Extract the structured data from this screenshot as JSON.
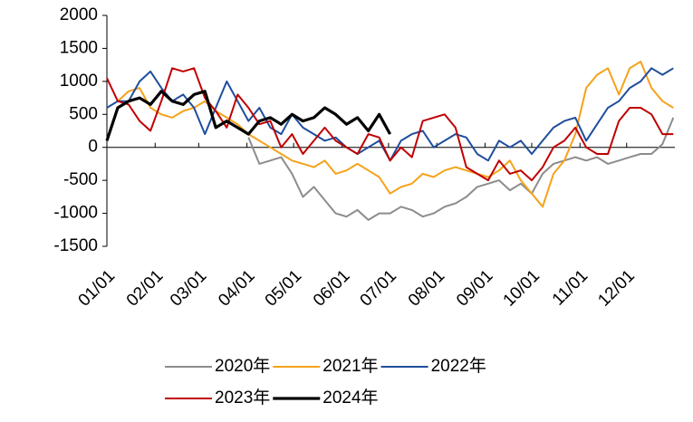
{
  "chart_data": {
    "type": "line",
    "x": [
      0,
      7,
      14,
      21,
      28,
      35,
      42,
      49,
      56,
      63,
      70,
      77,
      84,
      91,
      98,
      105,
      112,
      119,
      126,
      133,
      140,
      147,
      154,
      161,
      168,
      175,
      182,
      189,
      196,
      203,
      210,
      217,
      224,
      231,
      238,
      245,
      252,
      259,
      266,
      273,
      280,
      287,
      294,
      301,
      308,
      315,
      322,
      329,
      336,
      343,
      350,
      357,
      364
    ],
    "xlim": [
      0,
      365
    ],
    "xticks": [
      {
        "value": 0,
        "label": "01/01"
      },
      {
        "value": 31,
        "label": "02/01"
      },
      {
        "value": 59,
        "label": "03/01"
      },
      {
        "value": 90,
        "label": "04/01"
      },
      {
        "value": 120,
        "label": "05/01"
      },
      {
        "value": 151,
        "label": "06/01"
      },
      {
        "value": 181,
        "label": "07/01"
      },
      {
        "value": 212,
        "label": "08/01"
      },
      {
        "value": 243,
        "label": "09/01"
      },
      {
        "value": 273,
        "label": "10/01"
      },
      {
        "value": 304,
        "label": "11/01"
      },
      {
        "value": 334,
        "label": "12/01"
      }
    ],
    "ylim": [
      -1500,
      2000
    ],
    "yticks": [
      -1500,
      -1000,
      -500,
      0,
      500,
      1000,
      1500,
      2000
    ],
    "grid": false,
    "series": [
      {
        "name": "2020年",
        "color": "#8c8c8c",
        "values": [
          null,
          null,
          null,
          null,
          null,
          null,
          null,
          null,
          null,
          null,
          null,
          null,
          null,
          150,
          -250,
          -200,
          -150,
          -400,
          -750,
          -600,
          -800,
          -1000,
          -1050,
          -950,
          -1100,
          -1000,
          -1000,
          -900,
          -950,
          -1050,
          -1000,
          -900,
          -850,
          -750,
          -600,
          -550,
          -500,
          -650,
          -550,
          -700,
          -400,
          -250,
          -200,
          -150,
          -200,
          -150,
          -250,
          -200,
          -150,
          -100,
          -100,
          50,
          450
        ]
      },
      {
        "name": "2021年",
        "color": "#f5a21b",
        "values": [
          null,
          700,
          850,
          900,
          600,
          500,
          450,
          550,
          600,
          700,
          550,
          450,
          350,
          200,
          100,
          0,
          -100,
          -200,
          -250,
          -300,
          -200,
          -400,
          -350,
          -250,
          -350,
          -450,
          -700,
          -600,
          -550,
          -400,
          -450,
          -350,
          -300,
          -350,
          -400,
          -450,
          -350,
          -200,
          -500,
          -700,
          -900,
          -400,
          -200,
          200,
          900,
          1100,
          1200,
          800,
          1200,
          1300,
          900,
          700,
          600
        ]
      },
      {
        "name": "2022年",
        "color": "#1f4e9c",
        "values": [
          600,
          700,
          700,
          1000,
          1150,
          900,
          700,
          800,
          600,
          200,
          600,
          1000,
          700,
          400,
          600,
          300,
          200,
          500,
          300,
          200,
          100,
          150,
          0,
          -100,
          0,
          100,
          -200,
          100,
          200,
          250,
          0,
          100,
          200,
          150,
          -100,
          -200,
          100,
          0,
          100,
          -100,
          100,
          300,
          400,
          450,
          100,
          350,
          600,
          700,
          900,
          1000,
          1200,
          1100,
          1200
        ]
      },
      {
        "name": "2023年",
        "color": "#c00000",
        "values": [
          1050,
          700,
          650,
          400,
          250,
          700,
          1200,
          1150,
          1200,
          750,
          550,
          300,
          800,
          600,
          350,
          400,
          0,
          200,
          -100,
          100,
          300,
          100,
          0,
          -100,
          200,
          150,
          -200,
          0,
          -150,
          400,
          450,
          500,
          300,
          -300,
          -400,
          -500,
          -200,
          -400,
          -350,
          -500,
          -300,
          0,
          100,
          300,
          0,
          -100,
          -100,
          400,
          600,
          600,
          500,
          200,
          200
        ]
      },
      {
        "name": "2024年",
        "color": "#000000",
        "values": [
          100,
          600,
          700,
          750,
          650,
          850,
          700,
          650,
          800,
          850,
          300,
          400,
          300,
          200,
          400,
          450,
          350,
          500,
          400,
          450,
          600,
          500,
          350,
          450,
          250,
          500,
          200,
          null,
          null,
          null,
          null,
          null,
          null,
          null,
          null,
          null,
          null,
          null,
          null,
          null,
          null,
          null,
          null,
          null,
          null,
          null,
          null,
          null,
          null,
          null,
          null,
          null,
          null
        ]
      }
    ]
  }
}
